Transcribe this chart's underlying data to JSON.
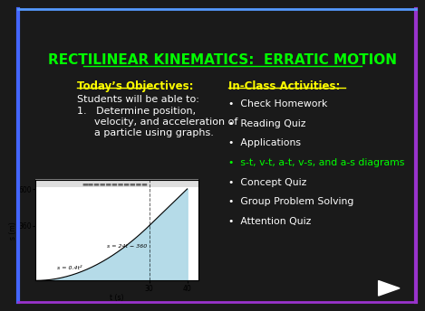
{
  "title": "RECTILINEAR KINEMATICS:  ERRATIC MOTION",
  "title_color": "#00FF00",
  "background_color": "#1a1a1a",
  "objectives_header": "Today’s Objectives:",
  "objectives_text": "Students will be able to:",
  "activities_header": "In-Class Activities:",
  "activities_items": [
    "Check Homework",
    "Reading Quiz",
    "Applications",
    "s-t, v-t, a-t, v-s, and a-s diagrams",
    "Concept Quiz",
    "Group Problem Solving",
    "Attention Quiz"
  ],
  "activities_special_index": 3,
  "activities_special_color": "#00FF00",
  "text_color": "#FFFFFF",
  "header_color": "#FFFF00",
  "graph_fill_color": "#ADD8E6",
  "graph_eq1": "s = 24t − 360",
  "graph_eq2": "s = 0.4t²",
  "graph_yticks": [
    360,
    600
  ],
  "graph_xticks": [
    30,
    40
  ],
  "graph_xlabel": "t (s)",
  "graph_ylabel": "s (m)"
}
